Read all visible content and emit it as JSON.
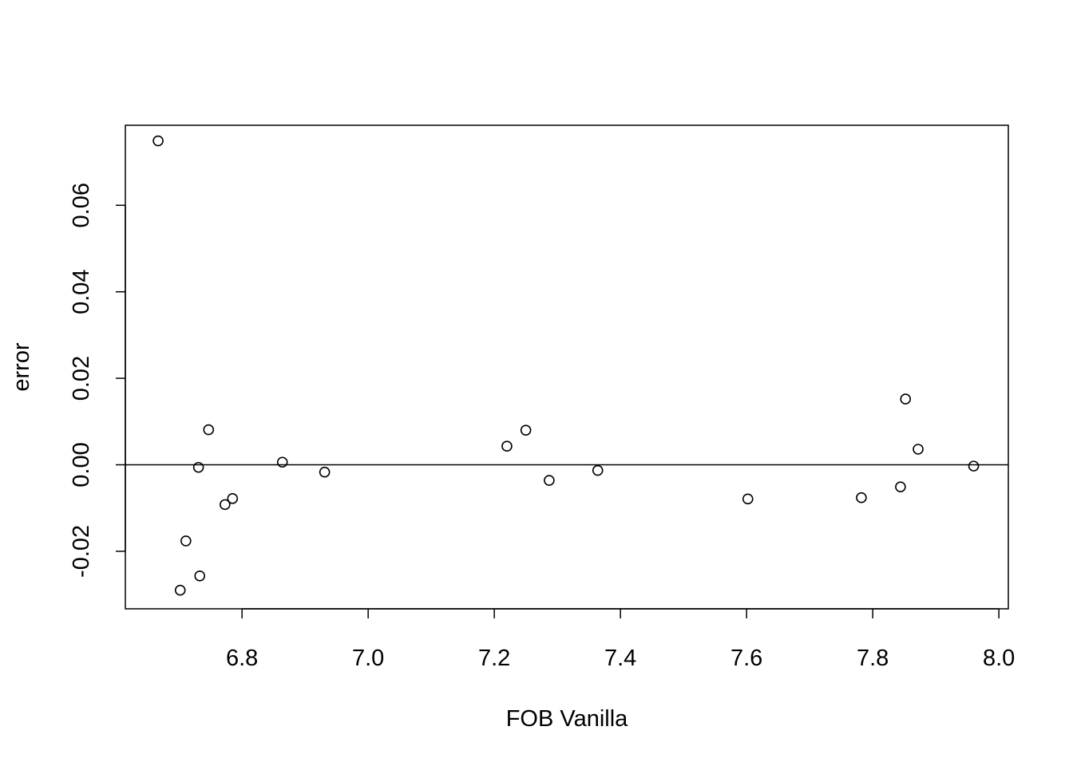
{
  "chart_data": {
    "type": "scatter",
    "title": "",
    "xlabel": "FOB Vanilla",
    "ylabel": "error",
    "xlim": [
      6.615,
      8.015
    ],
    "ylim": [
      -0.0333,
      0.0785
    ],
    "x_ticks": [
      6.8,
      7.0,
      7.2,
      7.4,
      7.6,
      7.8,
      8.0
    ],
    "x_tick_labels": [
      "6.8",
      "7.0",
      "7.2",
      "7.4",
      "7.6",
      "7.8",
      "8.0"
    ],
    "y_ticks": [
      -0.02,
      0.0,
      0.02,
      0.04,
      0.06
    ],
    "y_tick_labels": [
      "-0.02",
      "0.00",
      "0.02",
      "0.04",
      "0.06"
    ],
    "reference_line_y": 0,
    "grid": false,
    "legend": "none",
    "point_color": "#000000",
    "x": [
      6.667,
      6.702,
      6.711,
      6.731,
      6.733,
      6.747,
      6.773,
      6.785,
      6.864,
      6.931,
      7.22,
      7.25,
      7.287,
      7.364,
      7.602,
      7.782,
      7.844,
      7.852,
      7.872,
      7.96
    ],
    "y": [
      0.0749,
      -0.029,
      -0.0176,
      -0.0006,
      -0.0257,
      0.0081,
      -0.0092,
      -0.0078,
      0.0006,
      -0.0017,
      0.0043,
      0.008,
      -0.0036,
      -0.0013,
      -0.0079,
      -0.0076,
      -0.0051,
      0.0152,
      0.0036,
      -0.0003
    ]
  }
}
